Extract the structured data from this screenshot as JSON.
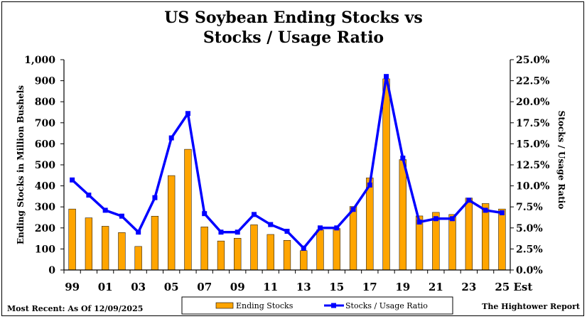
{
  "chart_data": {
    "type": "bar+line",
    "title_line1": "US Soybean Ending Stocks vs",
    "title_line2": "Stocks / Usage Ratio",
    "ylabel_left": "Ending Stocks in Million Bushels",
    "ylabel_right": "Stocks / Usage Ratio",
    "left_axis": {
      "min": 0,
      "max": 1000,
      "step": 100,
      "ticks": [
        "0",
        "100",
        "200",
        "300",
        "400",
        "500",
        "600",
        "700",
        "800",
        "900",
        "1,000"
      ]
    },
    "right_axis": {
      "min": 0,
      "max": 25,
      "step": 2.5,
      "ticks": [
        "0.0%",
        "2.5%",
        "5.0%",
        "7.5%",
        "10.0%",
        "12.5%",
        "15.0%",
        "17.5%",
        "20.0%",
        "22.5%",
        "25.0%"
      ]
    },
    "categories": [
      "99",
      "00",
      "01",
      "02",
      "03",
      "04",
      "05",
      "06",
      "07",
      "08",
      "09",
      "10",
      "11",
      "12",
      "13",
      "14",
      "15",
      "16",
      "17",
      "18",
      "19",
      "20",
      "21",
      "22",
      "23",
      "24",
      "25 Est"
    ],
    "x_tick_labels": [
      {
        "index": 0,
        "label": "99"
      },
      {
        "index": 2,
        "label": "01"
      },
      {
        "index": 4,
        "label": "03"
      },
      {
        "index": 6,
        "label": "05"
      },
      {
        "index": 8,
        "label": "07"
      },
      {
        "index": 10,
        "label": "09"
      },
      {
        "index": 12,
        "label": "11"
      },
      {
        "index": 14,
        "label": "13"
      },
      {
        "index": 16,
        "label": "15"
      },
      {
        "index": 18,
        "label": "17"
      },
      {
        "index": 20,
        "label": "19"
      },
      {
        "index": 22,
        "label": "21"
      },
      {
        "index": 24,
        "label": "23"
      },
      {
        "index": 26,
        "label": "25 Est"
      }
    ],
    "series": [
      {
        "name": "Ending Stocks",
        "type": "bar",
        "axis": "left",
        "color": "#ffa500",
        "values": [
          290,
          248,
          208,
          178,
          112,
          256,
          449,
          574,
          205,
          138,
          151,
          215,
          169,
          141,
          92,
          191,
          197,
          302,
          438,
          909,
          525,
          257,
          274,
          264,
          342,
          316,
          290
        ]
      },
      {
        "name": "Stocks / Usage Ratio",
        "type": "line",
        "axis": "right",
        "color": "#0000ff",
        "values": [
          10.7,
          8.9,
          7.1,
          6.4,
          4.5,
          8.6,
          15.7,
          18.6,
          6.7,
          4.5,
          4.5,
          6.6,
          5.4,
          4.6,
          2.6,
          5.0,
          5.0,
          7.2,
          10.1,
          23.0,
          13.3,
          5.7,
          6.1,
          6.1,
          8.3,
          7.1,
          6.8
        ]
      }
    ]
  },
  "footer": {
    "left_note": "Most Recent: As Of 12/09/2025",
    "right_note": "The Hightower Report"
  }
}
